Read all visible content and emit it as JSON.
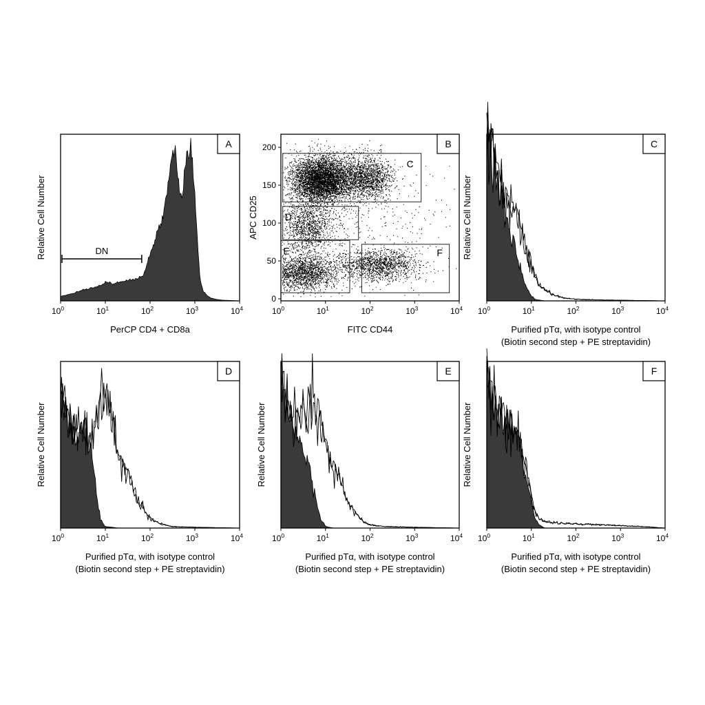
{
  "figure": {
    "shared_text": {
      "relative_cell_number": "Relative Cell Number",
      "purified_line1": "Purified pTα, with isotype control",
      "purified_line2": "(Biotin second step + PE streptavidin)"
    },
    "log_ticks": [
      {
        "base": "10",
        "exp": "0"
      },
      {
        "base": "10",
        "exp": "1"
      },
      {
        "base": "10",
        "exp": "2"
      },
      {
        "base": "10",
        "exp": "3"
      },
      {
        "base": "10",
        "exp": "4"
      }
    ],
    "colors": {
      "fill": "#3a3a3a",
      "line": "#000000",
      "frame": "#000000"
    }
  },
  "chart_data": [
    {
      "panel": "A",
      "type": "area",
      "xlabel": "PerCP CD4 + CD8a",
      "ylabel": "Relative Cell Number",
      "x_scale": "log",
      "xlim": [
        1,
        10000
      ],
      "ylim": [
        0,
        1
      ],
      "grid": false,
      "series": [
        {
          "x": [
            1,
            1.5,
            2,
            3,
            5,
            8,
            10,
            12,
            15,
            20,
            30,
            50,
            70,
            100,
            150,
            200,
            250,
            300,
            350,
            400,
            450,
            500,
            550,
            600,
            700,
            800,
            900,
            1000,
            1100,
            1300,
            1500,
            1800,
            2200,
            3000,
            4000,
            10000
          ],
          "y": [
            0.03,
            0.04,
            0.05,
            0.07,
            0.08,
            0.1,
            0.12,
            0.12,
            0.11,
            0.12,
            0.13,
            0.14,
            0.16,
            0.3,
            0.45,
            0.55,
            0.75,
            0.92,
            0.98,
            0.86,
            0.72,
            0.66,
            0.72,
            0.86,
            0.95,
            0.98,
            0.9,
            0.7,
            0.45,
            0.15,
            0.07,
            0.04,
            0.02,
            0.01,
            0.005,
            0
          ]
        }
      ],
      "annotations": [
        {
          "label": "DN",
          "x_range": [
            1,
            65
          ]
        }
      ]
    },
    {
      "panel": "B",
      "type": "scatter",
      "xlabel": "FITC CD44",
      "ylabel": "APC CD25",
      "x_scale": "log",
      "xlim": [
        1,
        10000
      ],
      "ylim": [
        0,
        200
      ],
      "y_ticks": [
        0,
        50,
        100,
        150,
        200
      ],
      "grid": false,
      "clusters": [
        {
          "center_log10x": 0.9,
          "center_y": 158,
          "sd_log10x": 0.33,
          "sd_y": 15,
          "density": 0.42
        },
        {
          "center_log10x": 1.9,
          "center_y": 160,
          "sd_log10x": 0.3,
          "sd_y": 14,
          "density": 0.14
        },
        {
          "center_log10x": 0.6,
          "center_y": 95,
          "sd_log10x": 0.3,
          "sd_y": 18,
          "density": 0.1
        },
        {
          "center_log10x": 0.5,
          "center_y": 35,
          "sd_log10x": 0.4,
          "sd_y": 12,
          "density": 0.16
        },
        {
          "center_log10x": 2.2,
          "center_y": 45,
          "sd_log10x": 0.45,
          "sd_y": 10,
          "density": 0.12
        },
        {
          "center_log10x": 1.5,
          "center_y": 100,
          "sd_log10x": 1.1,
          "sd_y": 55,
          "density": 0.06
        }
      ],
      "gates": [
        {
          "label": "C",
          "x": [
            1.1,
            1400
          ],
          "y": [
            128,
            192
          ]
        },
        {
          "label": "D",
          "x": [
            1.1,
            55
          ],
          "y": [
            78,
            122
          ]
        },
        {
          "label": "E",
          "x": [
            1.0,
            35
          ],
          "y": [
            8,
            77
          ]
        },
        {
          "label": "F",
          "x": [
            65,
            6000
          ],
          "y": [
            8,
            72
          ]
        }
      ]
    },
    {
      "panel": "C",
      "type": "line",
      "xlabel": "Purified pTα, with isotype control",
      "xlabel2": "(Biotin second step + PE streptavidin)",
      "ylabel": "Relative Cell Number",
      "x_scale": "log",
      "xlim": [
        1,
        10000
      ],
      "ylim": [
        0,
        1
      ],
      "series": [
        {
          "role": "isotype (filled)",
          "x": [
            1,
            1.3,
            1.6,
            2,
            2.5,
            3,
            4,
            5,
            6,
            8,
            10,
            12,
            15,
            20,
            10000
          ],
          "y": [
            1.0,
            0.9,
            0.78,
            0.68,
            0.55,
            0.47,
            0.36,
            0.25,
            0.17,
            0.08,
            0.03,
            0.01,
            0.005,
            0,
            0
          ]
        },
        {
          "role": "pTα",
          "x": [
            1,
            1.3,
            1.6,
            2,
            2.5,
            3,
            4,
            5,
            6,
            8,
            10,
            12,
            15,
            20,
            30,
            50,
            80,
            150,
            300,
            1000,
            3000,
            10000
          ],
          "y": [
            1.0,
            0.88,
            0.8,
            0.72,
            0.65,
            0.6,
            0.55,
            0.48,
            0.42,
            0.3,
            0.22,
            0.15,
            0.1,
            0.07,
            0.04,
            0.02,
            0.012,
            0.008,
            0.006,
            0.004,
            0.002,
            0
          ]
        }
      ]
    },
    {
      "panel": "D",
      "type": "line",
      "xlabel": "Purified pTα, with isotype control",
      "xlabel2": "(Biotin second step + PE streptavidin)",
      "ylabel": "Relative Cell Number",
      "x_scale": "log",
      "xlim": [
        1,
        10000
      ],
      "ylim": [
        0,
        1
      ],
      "series": [
        {
          "role": "isotype (filled)",
          "x": [
            1,
            1.5,
            2,
            3,
            4,
            5,
            6,
            7,
            8,
            9,
            10,
            20,
            10000
          ],
          "y": [
            0.85,
            0.65,
            0.6,
            0.57,
            0.55,
            0.45,
            0.3,
            0.14,
            0.05,
            0.02,
            0.01,
            0,
            0
          ]
        },
        {
          "role": "pTα",
          "x": [
            1,
            1.5,
            2,
            3,
            4,
            5,
            6,
            7,
            8,
            9,
            10,
            12,
            15,
            20,
            25,
            30,
            40,
            50,
            70,
            100,
            150,
            300,
            1000,
            10000
          ],
          "y": [
            0.85,
            0.65,
            0.6,
            0.57,
            0.56,
            0.55,
            0.62,
            0.72,
            0.8,
            0.86,
            0.82,
            0.72,
            0.62,
            0.48,
            0.4,
            0.35,
            0.26,
            0.18,
            0.12,
            0.06,
            0.03,
            0.01,
            0.005,
            0
          ]
        }
      ]
    },
    {
      "panel": "E",
      "type": "line",
      "xlabel": "Purified pTα, with isotype control",
      "xlabel2": "(Biotin second step + PE streptavidin)",
      "ylabel": "Relative Cell Number",
      "x_scale": "log",
      "xlim": [
        1,
        10000
      ],
      "ylim": [
        0,
        1
      ],
      "series": [
        {
          "role": "isotype (filled)",
          "x": [
            1,
            1.3,
            1.6,
            2,
            2.5,
            3,
            4,
            5,
            6,
            7,
            8,
            10,
            15,
            10000
          ],
          "y": [
            0.95,
            0.8,
            0.68,
            0.6,
            0.55,
            0.5,
            0.4,
            0.3,
            0.2,
            0.1,
            0.05,
            0.01,
            0,
            0
          ]
        },
        {
          "role": "pTα",
          "x": [
            1,
            1.3,
            1.6,
            2,
            2.5,
            3,
            4,
            5,
            6,
            8,
            10,
            12,
            15,
            20,
            25,
            30,
            40,
            50,
            70,
            100,
            200,
            1000,
            10000
          ],
          "y": [
            0.95,
            0.8,
            0.72,
            0.7,
            0.7,
            0.72,
            0.74,
            0.76,
            0.72,
            0.62,
            0.55,
            0.45,
            0.38,
            0.3,
            0.24,
            0.17,
            0.12,
            0.08,
            0.04,
            0.02,
            0.01,
            0.005,
            0
          ]
        }
      ]
    },
    {
      "panel": "F",
      "type": "line",
      "xlabel": "Purified pTα, with isotype control",
      "xlabel2": "(Biotin second step + PE streptavidin)",
      "ylabel": "Relative Cell Number",
      "x_scale": "log",
      "xlim": [
        1,
        10000
      ],
      "ylim": [
        0,
        1
      ],
      "series": [
        {
          "role": "isotype (filled)",
          "x": [
            1,
            1.3,
            1.6,
            2,
            2.5,
            3,
            4,
            5,
            6,
            8,
            10,
            12,
            15,
            20,
            10000
          ],
          "y": [
            1.0,
            0.82,
            0.72,
            0.66,
            0.64,
            0.62,
            0.6,
            0.55,
            0.45,
            0.3,
            0.16,
            0.06,
            0.02,
            0,
            0
          ]
        },
        {
          "role": "pTα",
          "x": [
            1,
            1.3,
            1.6,
            2,
            2.5,
            3,
            4,
            5,
            6,
            8,
            10,
            12,
            15,
            20,
            30,
            50,
            100,
            300,
            1000,
            3000,
            10000
          ],
          "y": [
            1.0,
            0.82,
            0.72,
            0.66,
            0.64,
            0.62,
            0.6,
            0.56,
            0.47,
            0.33,
            0.2,
            0.1,
            0.06,
            0.04,
            0.035,
            0.03,
            0.025,
            0.02,
            0.015,
            0.01,
            0
          ]
        }
      ]
    }
  ]
}
